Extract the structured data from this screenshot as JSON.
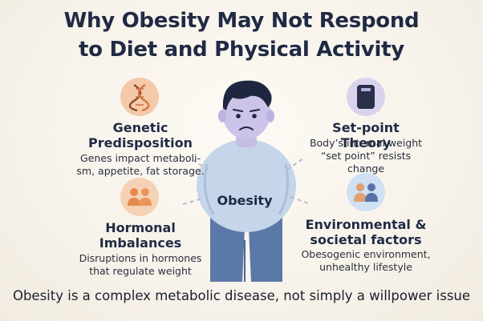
{
  "title": {
    "line1": "Why Obesity May Not Respond",
    "line2": "to Diet and Physical Activity"
  },
  "center": {
    "label": "Obesity"
  },
  "factors": {
    "genetic": {
      "heading_line1": "Genetic",
      "heading_line2": "Predisposition",
      "desc_line1": "Genes impact metaboli-",
      "desc_line2": "sm, appetite, fat storage.",
      "icon": "dna-icon",
      "color": "#f5c9a8"
    },
    "setpoint": {
      "heading_line1": "Set-point Theory",
      "desc_line1": "Body’s internal weight",
      "desc_line2": "“set point” resists change",
      "icon": "scale-icon",
      "color": "#d9d3ee"
    },
    "hormonal": {
      "heading_line1": "Hormonal",
      "heading_line2": "Imbalances",
      "desc_line1": "Disruptions in hormones",
      "desc_line2": "that regulate weight",
      "icon": "hormone-people-icon",
      "color": "#f6d2b5"
    },
    "environmental": {
      "heading_line1": "Environmental &",
      "heading_line2": "societal factors",
      "desc_line1": "Obesogenic environment,",
      "desc_line2": "unhealthy lifestyle",
      "icon": "people-group-icon",
      "color": "#cfe1f2"
    }
  },
  "footer": "Obesity is a complex metabolic disease, not simply a willpower issue"
}
